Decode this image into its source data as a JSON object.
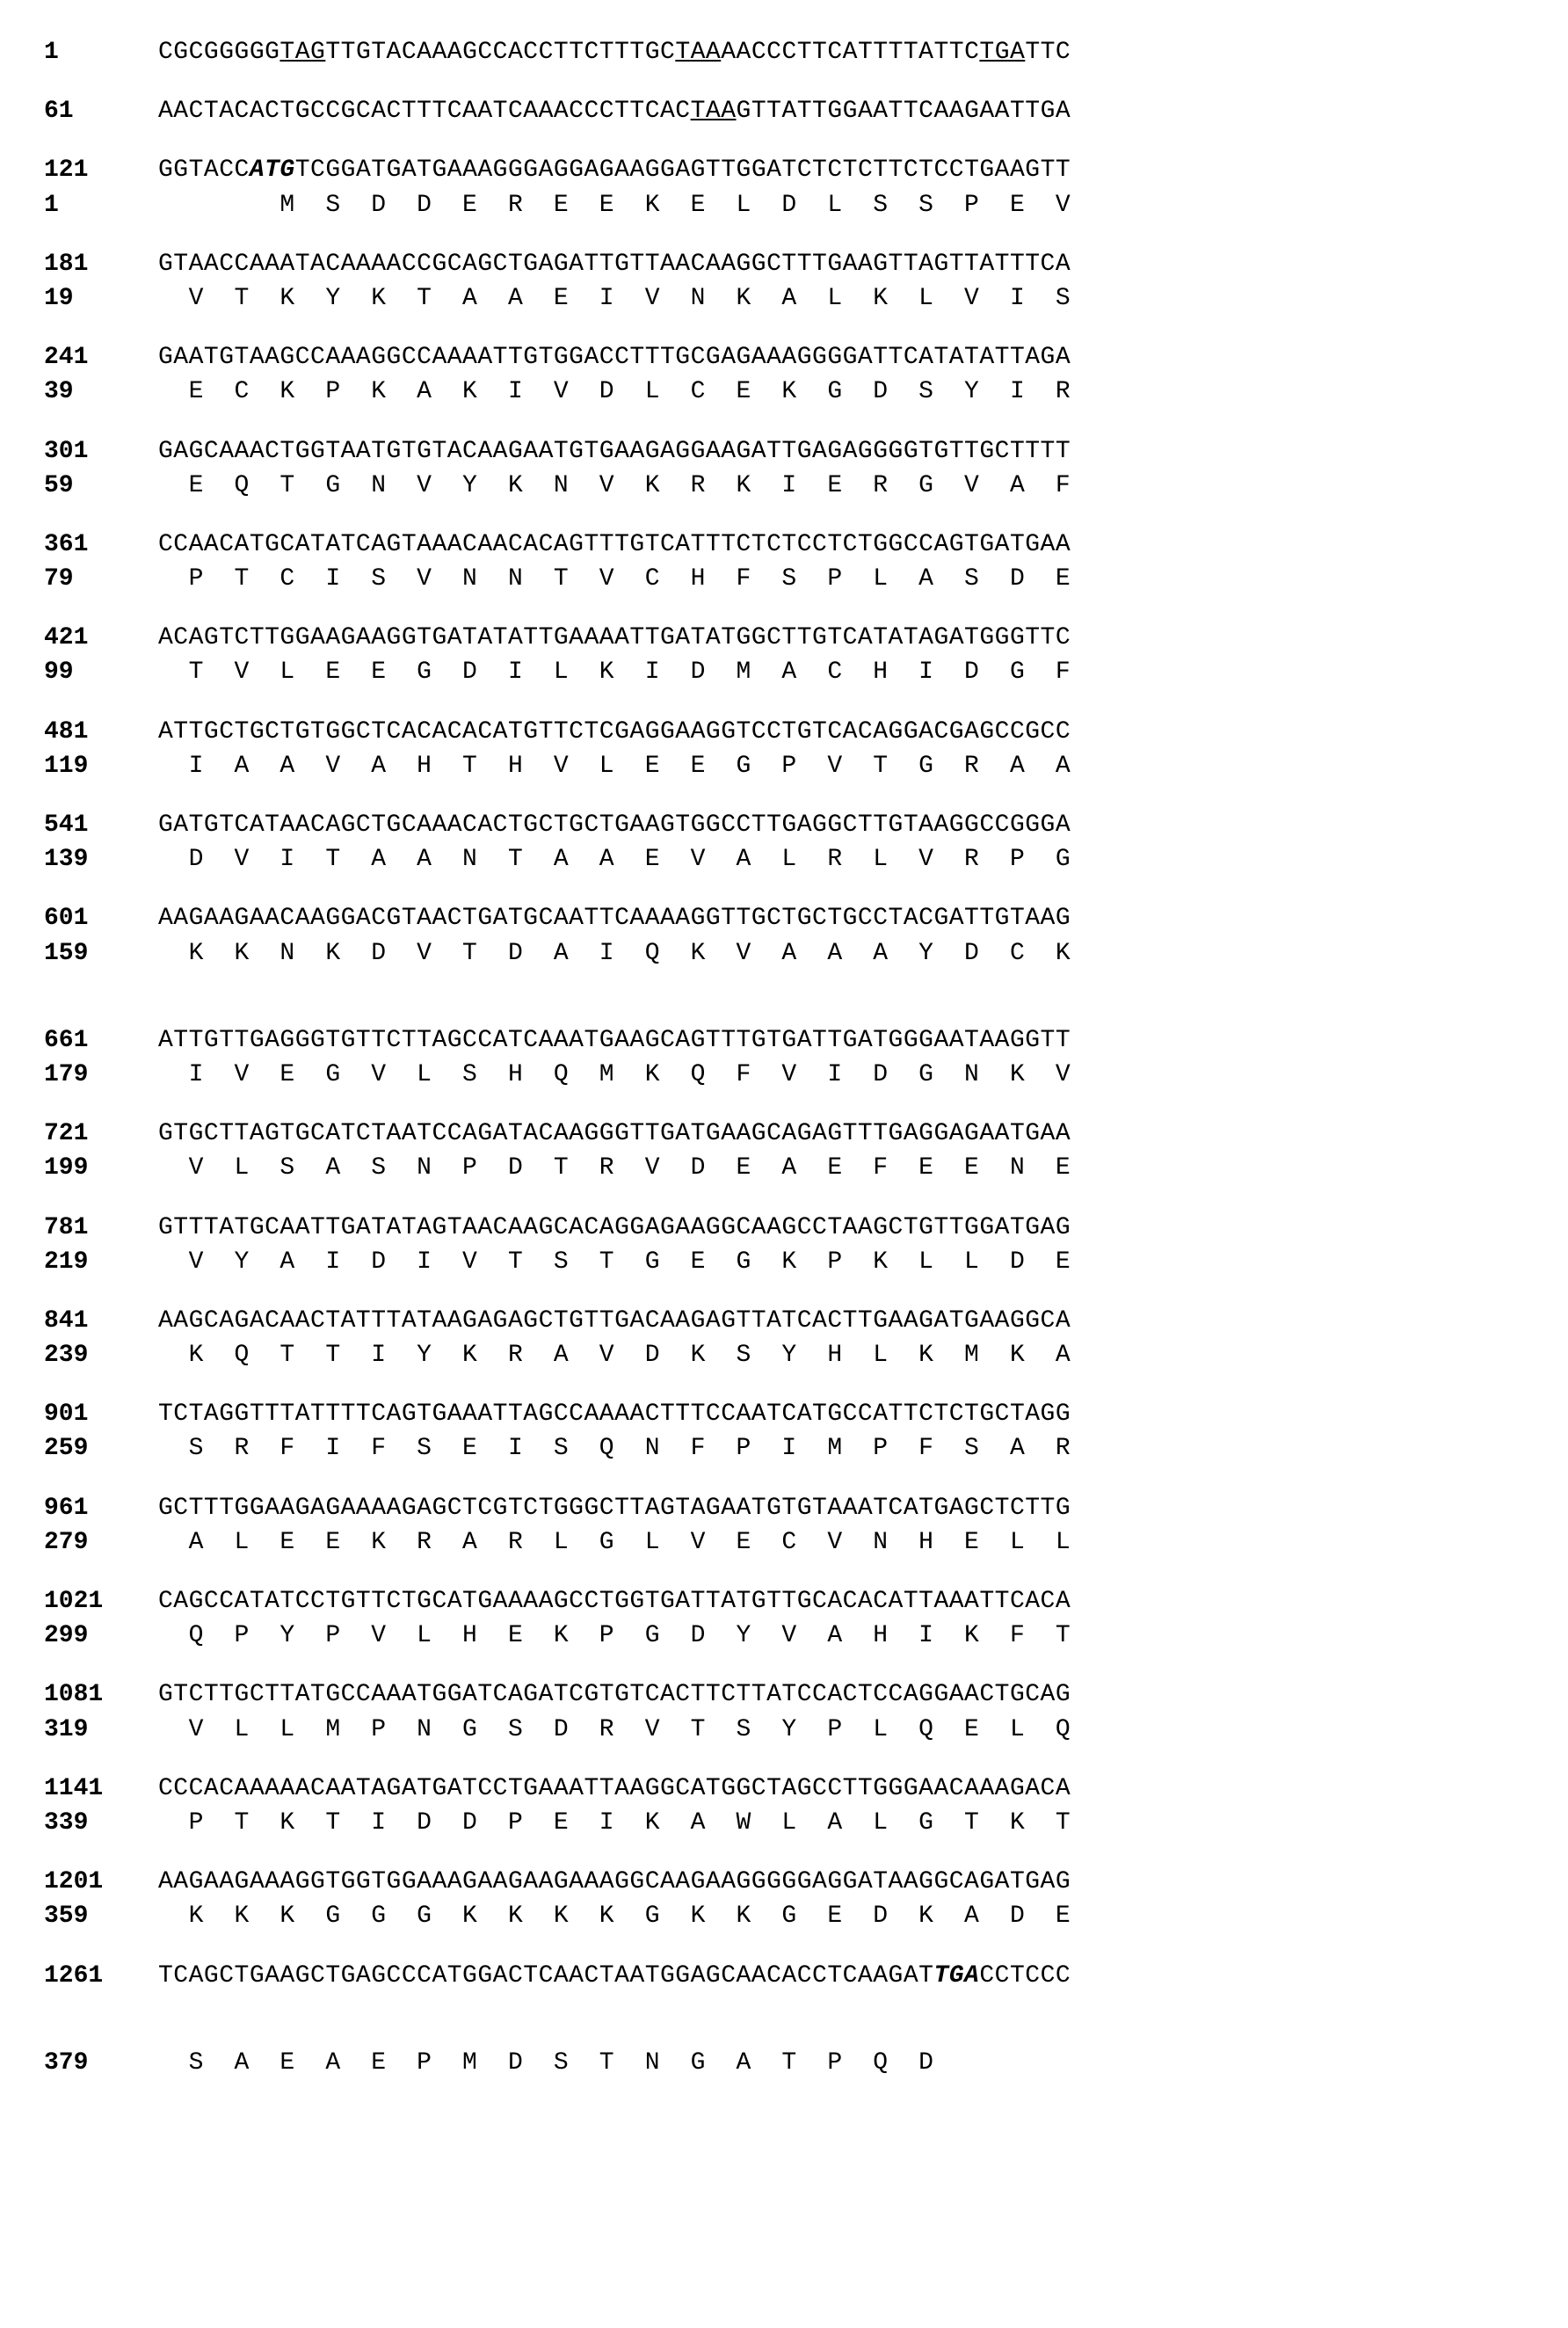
{
  "font_family": "Courier New",
  "font_size_pt": 21,
  "background_color": "#ffffff",
  "text_color": "#000000",
  "stop_codons_underlined": [
    "TAG",
    "TAA",
    "TGA"
  ],
  "start_codon_bold_italic": "ATG",
  "blocks": [
    {
      "nuc_num": "1",
      "aa_num": null,
      "nuc_segments": [
        {
          "t": "CGCGGGGG",
          "s": null
        },
        {
          "t": "TAG",
          "s": "stop"
        },
        {
          "t": "TTGTACAAAGCCACCTTCTTTGC",
          "s": null
        },
        {
          "t": "TAA",
          "s": "stop"
        },
        {
          "t": "AACCCTTCATTTTATTC",
          "s": null
        },
        {
          "t": "TGA",
          "s": "stop"
        },
        {
          "t": "TTC",
          "s": null
        }
      ],
      "aa": null
    },
    {
      "nuc_num": "61",
      "aa_num": null,
      "nuc_segments": [
        {
          "t": "AACTACACTGCCGCACTTTCAATCAAACCCTTCAC",
          "s": null
        },
        {
          "t": "TAA",
          "s": "stop"
        },
        {
          "t": "GTTATTGGAATTCAAGAATTGA",
          "s": null
        }
      ],
      "aa": null
    },
    {
      "nuc_num": "121",
      "aa_num": "1",
      "nuc_segments": [
        {
          "t": "GGTACC",
          "s": null
        },
        {
          "t": "ATG",
          "s": "start"
        },
        {
          "t": "TCGGATGATGAAAGGGAGGAGAAGGAGTTGGATCTCTCTTCTCCTGAAGTT",
          "s": null
        }
      ],
      "aa": "        M  S  D  D  E  R  E  E  K  E  L  D  L  S  S  P  E  V"
    },
    {
      "nuc_num": "181",
      "aa_num": "19",
      "nuc_segments": [
        {
          "t": "GTAACCAAATACAAAACCGCAGCTGAGATTGTTAACAAGGCTTTGAAGTTAGTTATTTCA",
          "s": null
        }
      ],
      "aa": "  V  T  K  Y  K  T  A  A  E  I  V  N  K  A  L  K  L  V  I  S"
    },
    {
      "nuc_num": "241",
      "aa_num": "39",
      "nuc_segments": [
        {
          "t": "GAATGTAAGCCAAAGGCCAAAATTGTGGACCTTTGCGAGAAAGGGGATTCATATATTAGA",
          "s": null
        }
      ],
      "aa": "  E  C  K  P  K  A  K  I  V  D  L  C  E  K  G  D  S  Y  I  R"
    },
    {
      "nuc_num": "301",
      "aa_num": "59",
      "nuc_segments": [
        {
          "t": "GAGCAAACTGGTAATGTGTACAAGAATGTGAAGAGGAAGATTGAGAGGGGTGTTGCTTTT",
          "s": null
        }
      ],
      "aa": "  E  Q  T  G  N  V  Y  K  N  V  K  R  K  I  E  R  G  V  A  F"
    },
    {
      "nuc_num": "361",
      "aa_num": "79",
      "nuc_segments": [
        {
          "t": "CCAACATGCATATCAGTAAACAACACAGTTTGTCATTTCTCTCCTCTGGCCAGTGATGAA",
          "s": null
        }
      ],
      "aa": "  P  T  C  I  S  V  N  N  T  V  C  H  F  S  P  L  A  S  D  E"
    },
    {
      "nuc_num": "421",
      "aa_num": "99",
      "nuc_segments": [
        {
          "t": "ACAGTCTTGGAAGAAGGTGATATATTGAAAATTGATATGGCTTGTCATATAGATGGGTTC",
          "s": null
        }
      ],
      "aa": "  T  V  L  E  E  G  D  I  L  K  I  D  M  A  C  H  I  D  G  F"
    },
    {
      "nuc_num": "481",
      "aa_num": "119",
      "nuc_segments": [
        {
          "t": "ATTGCTGCTGTGGCTCACACACATGTTCTCGAGGAAGGTCCTGTCACAGGACGAGCCGCC",
          "s": null
        }
      ],
      "aa": "  I  A  A  V  A  H  T  H  V  L  E  E  G  P  V  T  G  R  A  A"
    },
    {
      "nuc_num": "541",
      "aa_num": "139",
      "nuc_segments": [
        {
          "t": "GATGTCATAACAGCTGCAAACACTGCTGCTGAAGTGGCCTTGAGGCTTGTAAGGCCGGGA",
          "s": null
        }
      ],
      "aa": "  D  V  I  T  A  A  N  T  A  A  E  V  A  L  R  L  V  R  P  G"
    },
    {
      "nuc_num": "601",
      "aa_num": "159",
      "nuc_segments": [
        {
          "t": "AAGAAGAACAAGGACGTAACTGATGCAATTCAAAAGGTTGCTGCTGCCTACGATTGTAAG",
          "s": null
        }
      ],
      "aa": "  K  K  N  K  D  V  T  D  A  I  Q  K  V  A  A  A  Y  D  C  K",
      "extra_gap": true
    },
    {
      "nuc_num": "661",
      "aa_num": "179",
      "nuc_segments": [
        {
          "t": "ATTGTTGAGGGTGTTCTTAGCCATCAAATGAAGCAGTTTGTGATTGATGGGAATAAGGTT",
          "s": null
        }
      ],
      "aa": "  I  V  E  G  V  L  S  H  Q  M  K  Q  F  V  I  D  G  N  K  V"
    },
    {
      "nuc_num": "721",
      "aa_num": "199",
      "nuc_segments": [
        {
          "t": "GTGCTTAGTGCATCTAATCCAGATACAAGGGTTGATGAAGCAGAGTTTGAGGAGAATGAA",
          "s": null
        }
      ],
      "aa": "  V  L  S  A  S  N  P  D  T  R  V  D  E  A  E  F  E  E  N  E"
    },
    {
      "nuc_num": "781",
      "aa_num": "219",
      "nuc_segments": [
        {
          "t": "GTTTATGCAATTGATATAGTAACAAGCACAGGAGAAGGCAAGCCTAAGCTGTTGGATGAG",
          "s": null
        }
      ],
      "aa": "  V  Y  A  I  D  I  V  T  S  T  G  E  G  K  P  K  L  L  D  E"
    },
    {
      "nuc_num": "841",
      "aa_num": "239",
      "nuc_segments": [
        {
          "t": "AAGCAGACAACTATTTATAAGAGAGCTGTTGACAAGAGTTATCACTTGAAGATGAAGGCA",
          "s": null
        }
      ],
      "aa": "  K  Q  T  T  I  Y  K  R  A  V  D  K  S  Y  H  L  K  M  K  A"
    },
    {
      "nuc_num": "901",
      "aa_num": "259",
      "nuc_segments": [
        {
          "t": "TCTAGGTTTATTTTCAGTGAAATTAGCCAAAACTTTCCAATCATGCCATTCTCTGCTAGG",
          "s": null
        }
      ],
      "aa": "  S  R  F  I  F  S  E  I  S  Q  N  F  P  I  M  P  F  S  A  R"
    },
    {
      "nuc_num": "961",
      "aa_num": "279",
      "nuc_segments": [
        {
          "t": "GCTTTGGAAGAGAAAAGAGCTCGTCTGGGCTTAGTAGAATGTGTAAATCATGAGCTCTTG",
          "s": null
        }
      ],
      "aa": "  A  L  E  E  K  R  A  R  L  G  L  V  E  C  V  N  H  E  L  L"
    },
    {
      "nuc_num": "1021",
      "aa_num": "299",
      "nuc_segments": [
        {
          "t": "CAGCCATATCCTGTTCTGCATGAAAAGCCTGGTGATTATGTTGCACACATTAAATTCACA",
          "s": null
        }
      ],
      "aa": "  Q  P  Y  P  V  L  H  E  K  P  G  D  Y  V  A  H  I  K  F  T"
    },
    {
      "nuc_num": "1081",
      "aa_num": "319",
      "nuc_segments": [
        {
          "t": "GTCTTGCTTATGCCAAATGGATCAGATCGTGTCACTTCTTATCCACTCCAGGAACTGCAG",
          "s": null
        }
      ],
      "aa": "  V  L  L  M  P  N  G  S  D  R  V  T  S  Y  P  L  Q  E  L  Q"
    },
    {
      "nuc_num": "1141",
      "aa_num": "339",
      "nuc_segments": [
        {
          "t": "CCCACAAAAACAATAGATGATCCTGAAATTAAGGCATGGCTAGCCTTGGGAACAAAGACA",
          "s": null
        }
      ],
      "aa": "  P  T  K  T  I  D  D  P  E  I  K  A  W  L  A  L  G  T  K  T"
    },
    {
      "nuc_num": "1201",
      "aa_num": "359",
      "nuc_segments": [
        {
          "t": "AAGAAGAAAGGTGGTGGAAAGAAGAAGAAAGGCAAGAAGGGGGAGGATAAGGCAGATGAG",
          "s": null
        }
      ],
      "aa": "  K  K  K  G  G  G  K  K  K  K  G  K  K  G  E  D  K  A  D  E"
    },
    {
      "nuc_num": "1261",
      "aa_num": null,
      "nuc_segments": [
        {
          "t": "TCAGCTGAAGCTGAGCCCATGGACTCAACTAATGGAGCAACACCTCAAGAT",
          "s": null
        },
        {
          "t": "TGA",
          "s": "start"
        },
        {
          "t": "CCTCCC",
          "s": null
        }
      ],
      "aa": null,
      "extra_gap": true
    },
    {
      "nuc_num": null,
      "aa_num": "379",
      "nuc_segments": null,
      "aa": "  S  A  E  A  E  P  M  D  S  T  N  G  A  T  P  Q  D"
    }
  ]
}
